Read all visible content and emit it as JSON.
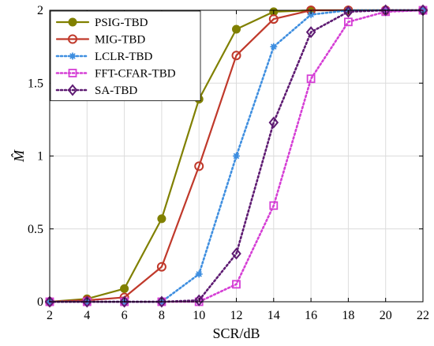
{
  "chart_data": {
    "type": "line",
    "title": "",
    "xlabel": "SCR/dB",
    "ylabel": "M̂",
    "x": [
      2,
      4,
      6,
      8,
      10,
      12,
      14,
      16,
      18,
      20,
      22
    ],
    "xlim": [
      2,
      22
    ],
    "ylim": [
      0,
      2
    ],
    "xticks": [
      "2",
      "4",
      "6",
      "8",
      "10",
      "12",
      "14",
      "16",
      "18",
      "20",
      "22"
    ],
    "yticks": [
      "0",
      "0.5",
      "1",
      "1.5",
      "2"
    ],
    "grid": true,
    "legend_position": "top-left",
    "series": [
      {
        "name": "PSIG-TBD",
        "color": "#808000",
        "line_style": "solid",
        "marker": "filled-circle",
        "values": [
          0,
          0.02,
          0.09,
          0.57,
          1.39,
          1.87,
          1.99,
          2,
          2,
          2,
          2
        ]
      },
      {
        "name": "MIG-TBD",
        "color": "#c0392b",
        "line_style": "solid",
        "marker": "open-circle",
        "values": [
          0,
          0.01,
          0.03,
          0.24,
          0.93,
          1.69,
          1.94,
          2,
          2,
          2,
          2
        ]
      },
      {
        "name": "LCLR-TBD",
        "color": "#3f8fe0",
        "line_style": "dotted",
        "marker": "filled-asterisk",
        "values": [
          0,
          0,
          0,
          0,
          0.19,
          1.0,
          1.75,
          1.97,
          2,
          2,
          2
        ]
      },
      {
        "name": "FFT-CFAR-TBD",
        "color": "#d53fd5",
        "line_style": "dotted",
        "marker": "open-square",
        "values": [
          0,
          0,
          0,
          0,
          0,
          0.12,
          0.66,
          1.53,
          1.92,
          1.99,
          2
        ]
      },
      {
        "name": "SA-TBD",
        "color": "#5e1b72",
        "line_style": "dotted",
        "marker": "open-diamond",
        "values": [
          0,
          0,
          0,
          0,
          0.01,
          0.33,
          1.23,
          1.85,
          1.99,
          2,
          2
        ]
      }
    ]
  }
}
